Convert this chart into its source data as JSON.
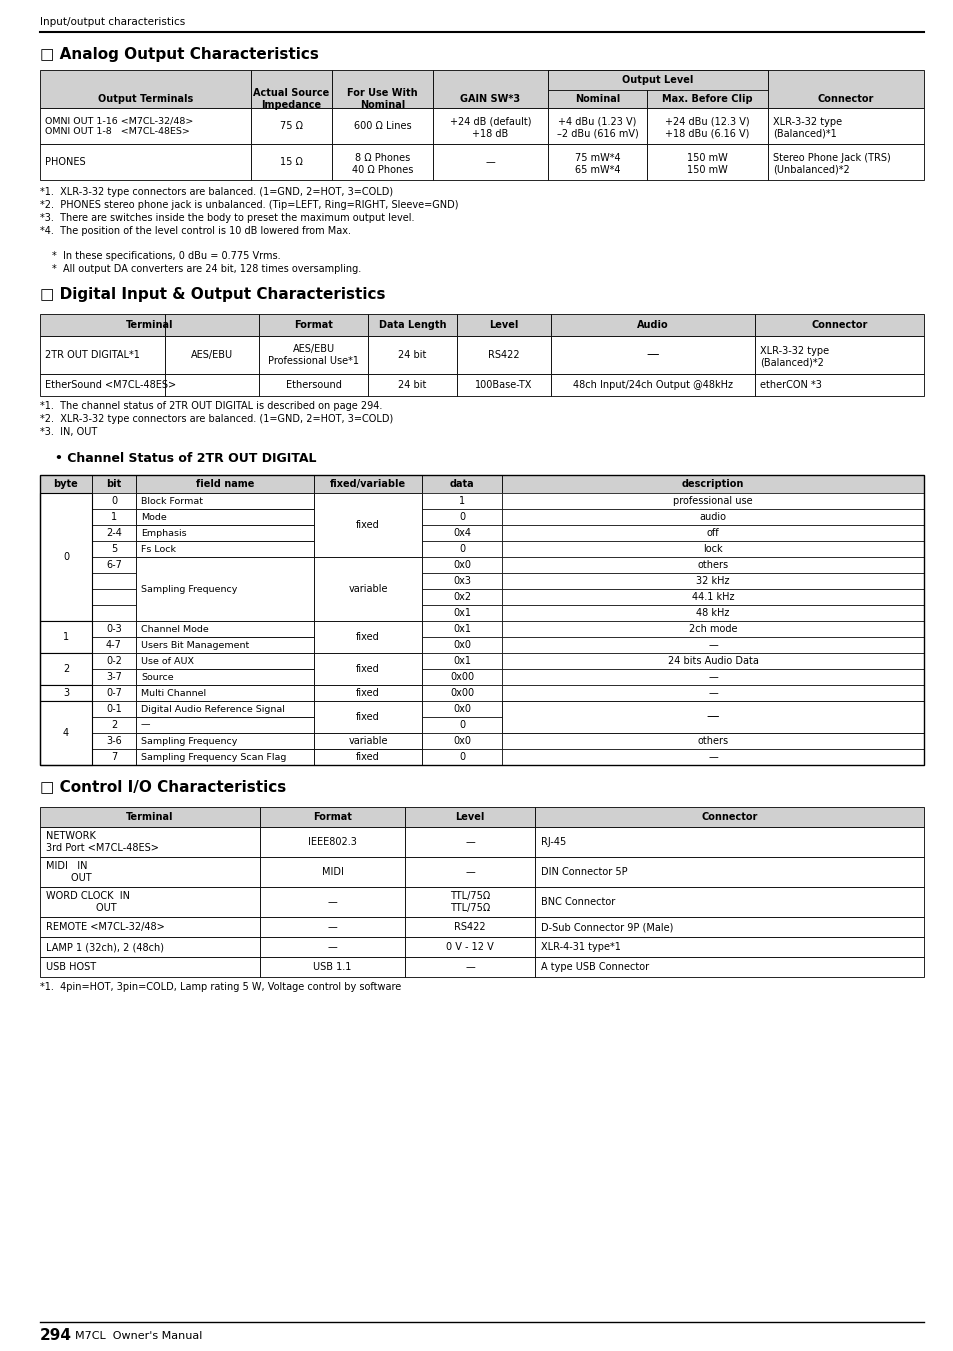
{
  "page_header": "Input/output characteristics",
  "section1_title": "□ Analog Output Characteristics",
  "section2_title": "□ Digital Input & Output Characteristics",
  "section3_title": "□ Control I/O Characteristics",
  "channel_status_title": "• Channel Status of 2TR OUT DIGITAL",
  "bg_color": "#ffffff",
  "header_bg": "#cccccc",
  "analog_notes": [
    "*1.  XLR-3-32 type connectors are balanced. (1=GND, 2=HOT, 3=COLD)",
    "*2.  PHONES stereo phone jack is unbalanced. (Tip=LEFT, Ring=RIGHT, Sleeve=GND)",
    "*3.  There are switches inside the body to preset the maximum output level.",
    "*4.  The position of the level control is 10 dB lowered from Max."
  ],
  "analog_bullets": [
    "*  In these specifications, 0 dBu = 0.775 Vrms.",
    "*  All output DA converters are 24 bit, 128 times oversampling."
  ],
  "digital_notes": [
    "*1.  The channel status of 2TR OUT DIGITAL is described on page 294.",
    "*2.  XLR-3-32 type connectors are balanced. (1=GND, 2=HOT, 3=COLD)",
    "*3.  IN, OUT"
  ],
  "control_notes": [
    "*1.  4pin=HOT, 3pin=COLD, Lamp rating 5 W, Voltage control by software"
  ],
  "channel_rows": [
    [
      "0",
      "0",
      "Block Format",
      "fixed",
      "1",
      "professional use",
      "byte0_start"
    ],
    [
      "",
      "1",
      "Mode",
      "fixed",
      "0",
      "audio",
      ""
    ],
    [
      "",
      "2-4",
      "Emphasis",
      "fixed",
      "0x4",
      "off",
      ""
    ],
    [
      "",
      "5",
      "Fs Lock",
      "fixed",
      "0",
      "lock",
      "byte0_fixed_end"
    ],
    [
      "",
      "6-7",
      "Sampling Frequency",
      "variable",
      "0x0",
      "others",
      "byte0_var_start"
    ],
    [
      "",
      "",
      "",
      "",
      "0x3",
      "32 kHz",
      ""
    ],
    [
      "",
      "",
      "",
      "",
      "0x2",
      "44.1 kHz",
      ""
    ],
    [
      "",
      "",
      "",
      "",
      "0x1",
      "48 kHz",
      "byte0_end"
    ],
    [
      "1",
      "0-3",
      "Channel Mode",
      "fixed",
      "0x1",
      "2ch mode",
      "byte1_start"
    ],
    [
      "",
      "4-7",
      "Users Bit Management",
      "fixed",
      "0x0",
      "—",
      "byte1_end"
    ],
    [
      "2",
      "0-2",
      "Use of AUX",
      "fixed",
      "0x1",
      "24 bits Audio Data",
      "byte2_start"
    ],
    [
      "",
      "3-7",
      "Source",
      "fixed",
      "0x00",
      "—",
      "byte2_end"
    ],
    [
      "3",
      "0-7",
      "Multi Channel",
      "fixed",
      "0x00",
      "—",
      "byte3"
    ],
    [
      "4",
      "0-1",
      "Digital Audio Reference Signal",
      "fixed",
      "0x0",
      "",
      "byte4_fixed_start"
    ],
    [
      "",
      "2",
      "—",
      "fixed",
      "0",
      "—",
      "byte4_fixed_end"
    ],
    [
      "",
      "3-6",
      "Sampling Frequency",
      "variable",
      "0x0",
      "others",
      "byte4_var"
    ],
    [
      "",
      "7",
      "Sampling Frequency Scan Flag",
      "fixed",
      "0",
      "—",
      "byte4_end"
    ]
  ]
}
